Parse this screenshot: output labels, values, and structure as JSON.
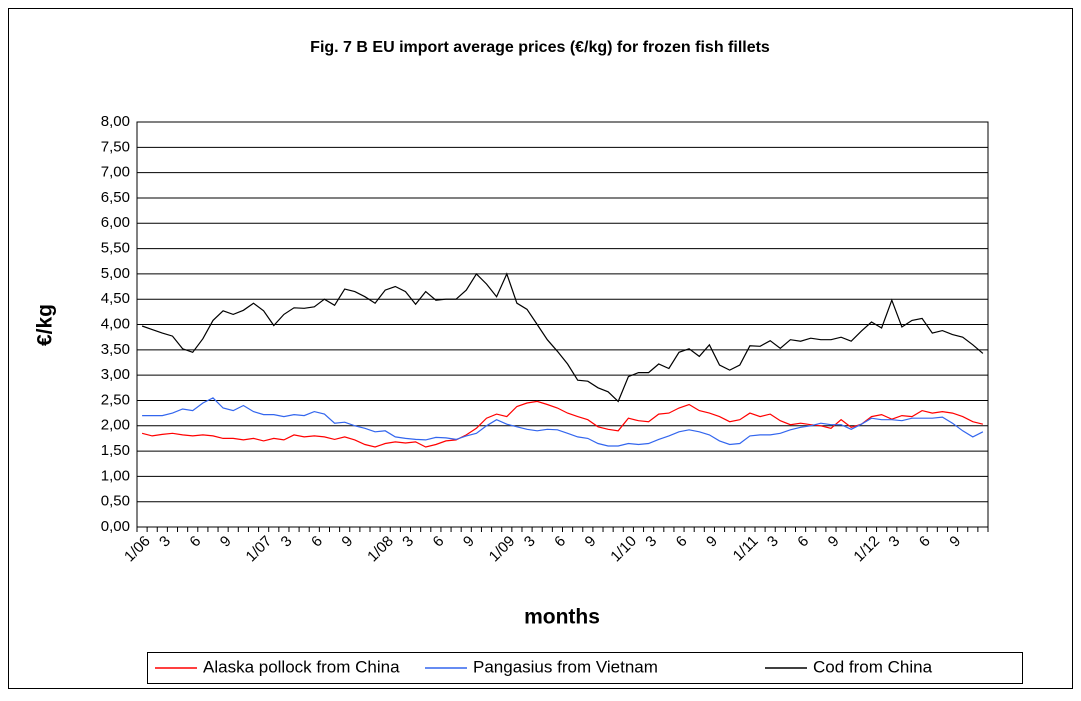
{
  "chart_data": {
    "type": "line",
    "title": "Fig. 7 B EU import average prices (€/kg) for frozen fish fillets",
    "x_label": "months",
    "y_label": "€/kg",
    "categories": [
      "1/06",
      null,
      "3",
      null,
      null,
      "6",
      null,
      null,
      "9",
      null,
      null,
      null,
      "1/07",
      null,
      "3",
      null,
      null,
      "6",
      null,
      null,
      "9",
      null,
      null,
      null,
      "1/08",
      null,
      "3",
      null,
      null,
      "6",
      null,
      null,
      "9",
      null,
      null,
      null,
      "1/09",
      null,
      "3",
      null,
      null,
      "6",
      null,
      null,
      "9",
      null,
      null,
      null,
      "1/10",
      null,
      "3",
      null,
      null,
      "6",
      null,
      null,
      "9",
      null,
      null,
      null,
      "1/11",
      null,
      "3",
      null,
      null,
      "6",
      null,
      null,
      "9",
      null,
      null,
      null,
      "1/12",
      null,
      "3",
      null,
      null,
      "6",
      null,
      null,
      "9",
      null,
      null,
      null
    ],
    "series": [
      {
        "name": "Alaska pollock from China",
        "color": "#ff0000",
        "values": [
          1.85,
          1.8,
          1.83,
          1.85,
          1.82,
          1.8,
          1.82,
          1.8,
          1.75,
          1.75,
          1.72,
          1.75,
          1.7,
          1.75,
          1.72,
          1.82,
          1.78,
          1.8,
          1.78,
          1.73,
          1.78,
          1.72,
          1.63,
          1.58,
          1.65,
          1.68,
          1.66,
          1.68,
          1.58,
          1.63,
          1.7,
          1.72,
          1.82,
          1.95,
          2.15,
          2.23,
          2.18,
          2.38,
          2.45,
          2.48,
          2.42,
          2.35,
          2.25,
          2.18,
          2.12,
          1.98,
          1.93,
          1.9,
          2.15,
          2.1,
          2.08,
          2.23,
          2.25,
          2.35,
          2.42,
          2.3,
          2.25,
          2.18,
          2.08,
          2.12,
          2.25,
          2.18,
          2.23,
          2.1,
          2.02,
          2.05,
          2.02,
          2.0,
          1.95,
          2.12,
          1.97,
          2.03,
          2.18,
          2.22,
          2.13,
          2.2,
          2.18,
          2.3,
          2.25,
          2.28,
          2.25,
          2.18,
          2.08,
          2.03
        ]
      },
      {
        "name": "Pangasius from Vietnam",
        "color": "#3366ee",
        "values": [
          2.2,
          2.2,
          2.2,
          2.25,
          2.33,
          2.3,
          2.45,
          2.55,
          2.35,
          2.3,
          2.4,
          2.28,
          2.22,
          2.22,
          2.18,
          2.22,
          2.2,
          2.28,
          2.23,
          2.05,
          2.07,
          2.0,
          1.95,
          1.88,
          1.9,
          1.78,
          1.75,
          1.73,
          1.72,
          1.77,
          1.76,
          1.73,
          1.8,
          1.85,
          2.0,
          2.12,
          2.03,
          1.98,
          1.93,
          1.9,
          1.93,
          1.92,
          1.85,
          1.78,
          1.75,
          1.65,
          1.6,
          1.6,
          1.65,
          1.63,
          1.65,
          1.73,
          1.8,
          1.88,
          1.92,
          1.88,
          1.82,
          1.7,
          1.63,
          1.65,
          1.8,
          1.82,
          1.82,
          1.85,
          1.92,
          1.97,
          2.0,
          2.05,
          2.02,
          2.02,
          1.93,
          2.03,
          2.15,
          2.12,
          2.12,
          2.1,
          2.15,
          2.15,
          2.15,
          2.17,
          2.05,
          1.9,
          1.78,
          1.88
        ]
      },
      {
        "name": "Cod from China",
        "color": "#000000",
        "values": [
          3.97,
          3.9,
          3.83,
          3.77,
          3.52,
          3.45,
          3.72,
          4.08,
          4.27,
          4.2,
          4.28,
          4.42,
          4.27,
          3.98,
          4.2,
          4.33,
          4.32,
          4.35,
          4.5,
          4.38,
          4.7,
          4.65,
          4.55,
          4.42,
          4.68,
          4.75,
          4.65,
          4.4,
          4.65,
          4.48,
          4.5,
          4.5,
          4.68,
          5.0,
          4.8,
          4.55,
          5.0,
          4.42,
          4.3,
          4.0,
          3.7,
          3.47,
          3.22,
          2.9,
          2.88,
          2.75,
          2.67,
          2.48,
          2.97,
          3.05,
          3.05,
          3.22,
          3.13,
          3.45,
          3.52,
          3.37,
          3.6,
          3.2,
          3.1,
          3.2,
          3.58,
          3.57,
          3.68,
          3.53,
          3.7,
          3.67,
          3.73,
          3.7,
          3.7,
          3.75,
          3.67,
          3.87,
          4.05,
          3.93,
          4.48,
          3.95,
          4.08,
          4.12,
          3.83,
          3.88,
          3.8,
          3.75,
          3.6,
          3.43
        ]
      }
    ],
    "ylim": [
      0,
      8
    ],
    "yticks": [
      {
        "value": 0,
        "label": "0,00"
      },
      {
        "value": 0.5,
        "label": "0,50"
      },
      {
        "value": 1,
        "label": "1,00"
      },
      {
        "value": 1.5,
        "label": "1,50"
      },
      {
        "value": 2,
        "label": "2,00"
      },
      {
        "value": 2.5,
        "label": "2,50"
      },
      {
        "value": 3,
        "label": "3,00"
      },
      {
        "value": 3.5,
        "label": "3,50"
      },
      {
        "value": 4,
        "label": "4,00"
      },
      {
        "value": 4.5,
        "label": "4,50"
      },
      {
        "value": 5,
        "label": "5,00"
      },
      {
        "value": 5.5,
        "label": "5,50"
      },
      {
        "value": 6,
        "label": "6,00"
      },
      {
        "value": 6.5,
        "label": "6,50"
      },
      {
        "value": 7,
        "label": "7,00"
      },
      {
        "value": 7.5,
        "label": "7,50"
      },
      {
        "value": 8,
        "label": "8,00"
      }
    ],
    "grid": true,
    "legend": "bottom"
  }
}
